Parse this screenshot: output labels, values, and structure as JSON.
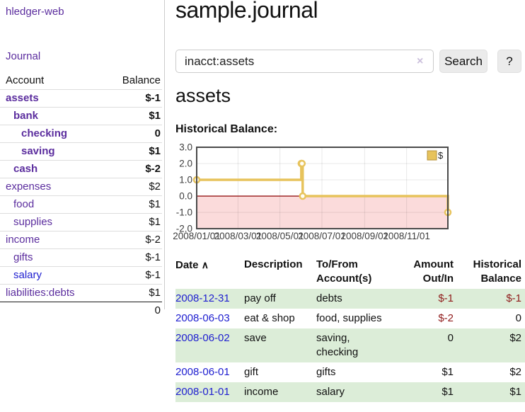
{
  "app": {
    "brand": "hledger-web"
  },
  "sidebar": {
    "nav_journal": "Journal",
    "accounts_table": {
      "headers": [
        "Account",
        "Balance"
      ],
      "rows": [
        {
          "account": "assets",
          "balance": "$-1",
          "level": 0,
          "bold": true,
          "balance_style": "neg-strong",
          "link_style": "purple"
        },
        {
          "account": "bank",
          "balance": "$1",
          "level": 1,
          "bold": true,
          "balance_style": "pos",
          "link_style": "purple"
        },
        {
          "account": "checking",
          "balance": "0",
          "level": 2,
          "bold": true,
          "balance_style": "pos",
          "link_style": "purple"
        },
        {
          "account": "saving",
          "balance": "$1",
          "level": 2,
          "bold": true,
          "balance_style": "pos",
          "link_style": "purple"
        },
        {
          "account": "cash",
          "balance": "$-2",
          "level": 1,
          "bold": true,
          "balance_style": "neg-strong",
          "link_style": "purple"
        },
        {
          "account": "expenses",
          "balance": "$2",
          "level": 0,
          "bold": false,
          "balance_style": "pos",
          "link_style": "purple"
        },
        {
          "account": "food",
          "balance": "$1",
          "level": 1,
          "bold": false,
          "balance_style": "pos",
          "link_style": "purple"
        },
        {
          "account": "supplies",
          "balance": "$1",
          "level": 1,
          "bold": false,
          "balance_style": "pos",
          "link_style": "purple"
        },
        {
          "account": "income",
          "balance": "$-2",
          "level": 0,
          "bold": false,
          "balance_style": "neg-soft",
          "link_style": "purple"
        },
        {
          "account": "gifts",
          "balance": "$-1",
          "level": 1,
          "bold": false,
          "balance_style": "neg-soft",
          "link_style": "purple"
        },
        {
          "account": "salary",
          "balance": "$-1",
          "level": 1,
          "bold": false,
          "balance_style": "neg-soft",
          "link_style": "blue"
        },
        {
          "account": "liabilities:debts",
          "balance": "$1",
          "level": 0,
          "bold": false,
          "balance_style": "pos",
          "link_style": "purple"
        }
      ],
      "total": "0"
    }
  },
  "header": {
    "title": "sample.journal"
  },
  "search": {
    "value": "inacct:assets",
    "clear_icon": "×",
    "button_label": "Search",
    "help_label": "?"
  },
  "account_page": {
    "heading": "assets",
    "chart_label": "Historical Balance:"
  },
  "chart_data": {
    "type": "line",
    "title": "Historical Balance:",
    "step": "after",
    "x_type": "date",
    "xlim": [
      "2008-01-01",
      "2008-12-31"
    ],
    "ylim": [
      -2,
      3
    ],
    "yticks": [
      {
        "value": 3,
        "label": "3.0"
      },
      {
        "value": 2,
        "label": "2.0"
      },
      {
        "value": 1,
        "label": "1.0"
      },
      {
        "value": 0,
        "label": "0.0"
      },
      {
        "value": -1,
        "label": "-1.0"
      },
      {
        "value": -2,
        "label": "-2.0"
      }
    ],
    "xticks": [
      {
        "date": "2008-01-01",
        "label": "2008/01/01"
      },
      {
        "date": "2008-03-01",
        "label": "2008/03/01"
      },
      {
        "date": "2008-05-01",
        "label": "2008/05/01"
      },
      {
        "date": "2008-07-01",
        "label": "2008/07/01"
      },
      {
        "date": "2008-09-01",
        "label": "2008/09/01"
      },
      {
        "date": "2008-11-01",
        "label": "2008/11/01"
      }
    ],
    "series": [
      {
        "name": "$",
        "color": "#e7c35c",
        "points": [
          {
            "x": "2008-01-01",
            "y": 1
          },
          {
            "x": "2008-06-01",
            "y": 2
          },
          {
            "x": "2008-06-02",
            "y": 2
          },
          {
            "x": "2008-06-03",
            "y": 0
          },
          {
            "x": "2008-12-31",
            "y": -1
          }
        ]
      }
    ],
    "legend": {
      "position": "top-right",
      "label": "$"
    },
    "grid": true,
    "negative_fill": "#fbdbdb",
    "zero_line_color": "#8b0000",
    "border_color": "#4a4a4a",
    "legend_box_border": "#b6933e"
  },
  "register": {
    "sort_asc_icon": "∧",
    "headers": {
      "date": "Date",
      "description": "Description",
      "account": "To/From Account(s)",
      "amount": "Amount Out/In",
      "balance": "Historical Balance"
    },
    "rows": [
      {
        "date": "2008-12-31",
        "description": "pay off",
        "account": "debts",
        "amount": "$-1",
        "balance": "$-1",
        "amount_neg": true,
        "balance_neg": true
      },
      {
        "date": "2008-06-03",
        "description": "eat & shop",
        "account": "food, supplies",
        "amount": "$-2",
        "balance": "0",
        "amount_neg": true,
        "balance_neg": false
      },
      {
        "date": "2008-06-02",
        "description": "save",
        "account": "saving, checking",
        "amount": "0",
        "balance": "$2",
        "amount_neg": false,
        "balance_neg": false
      },
      {
        "date": "2008-06-01",
        "description": "gift",
        "account": "gifts",
        "amount": "$1",
        "balance": "$2",
        "amount_neg": false,
        "balance_neg": false
      },
      {
        "date": "2008-01-01",
        "description": "income",
        "account": "salary",
        "amount": "$1",
        "balance": "$1",
        "amount_neg": false,
        "balance_neg": false
      }
    ]
  },
  "colors": {
    "purple_link": "#5b2d9e",
    "blue_link": "#2020d0",
    "negative_strong": "#8f1a1a",
    "negative_soft": "#bf8181",
    "row_stripe_green": "#dcedd8",
    "chart_gold": "#e7c35c",
    "chart_pink": "#fbdbdb",
    "chart_zero_red": "#8b0000"
  }
}
